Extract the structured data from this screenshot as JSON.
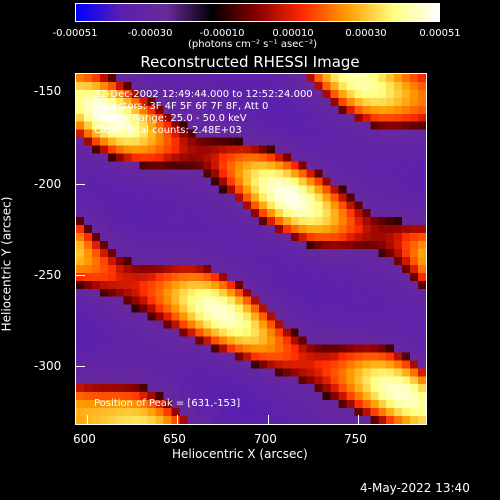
{
  "colorbar": {
    "ticks": [
      "-0.00051",
      "-0.00030",
      "-0.00010",
      "0.00010",
      "0.00030",
      "0.00051"
    ],
    "unit_label": "(photons cm⁻² s⁻¹ asec⁻²)",
    "colormap": [
      "#0000ff",
      "#5a1fb0",
      "#6a2a9a",
      "#000000",
      "#8a0000",
      "#ff2a00",
      "#ff9f00",
      "#ffff80",
      "#ffffff"
    ]
  },
  "title": "Reconstructed RHESSI Image",
  "info": {
    "line1": "22-Dec-2002 12:49:44.000 to 12:52:24.000",
    "line2": "Detectors: 3F 4F 5F 6F 7F 8F, Att 0",
    "line3": "Energy Range: 25.0 - 50.0 keV",
    "line4": "Clean     Total counts: 2.48E+03",
    "peak": "Position of Peak = [631,-153]"
  },
  "axes": {
    "x_label": "Heliocentric X (arcsec)",
    "y_label": "Heliocentric Y (arcsec)",
    "x_ticks": [
      "600",
      "650",
      "700",
      "750"
    ],
    "y_ticks": [
      "-150",
      "-200",
      "-250",
      "-300"
    ],
    "x_range": [
      593,
      787
    ],
    "y_range": [
      -140,
      -334
    ]
  },
  "timestamp": "4-May-2022 13:40"
}
